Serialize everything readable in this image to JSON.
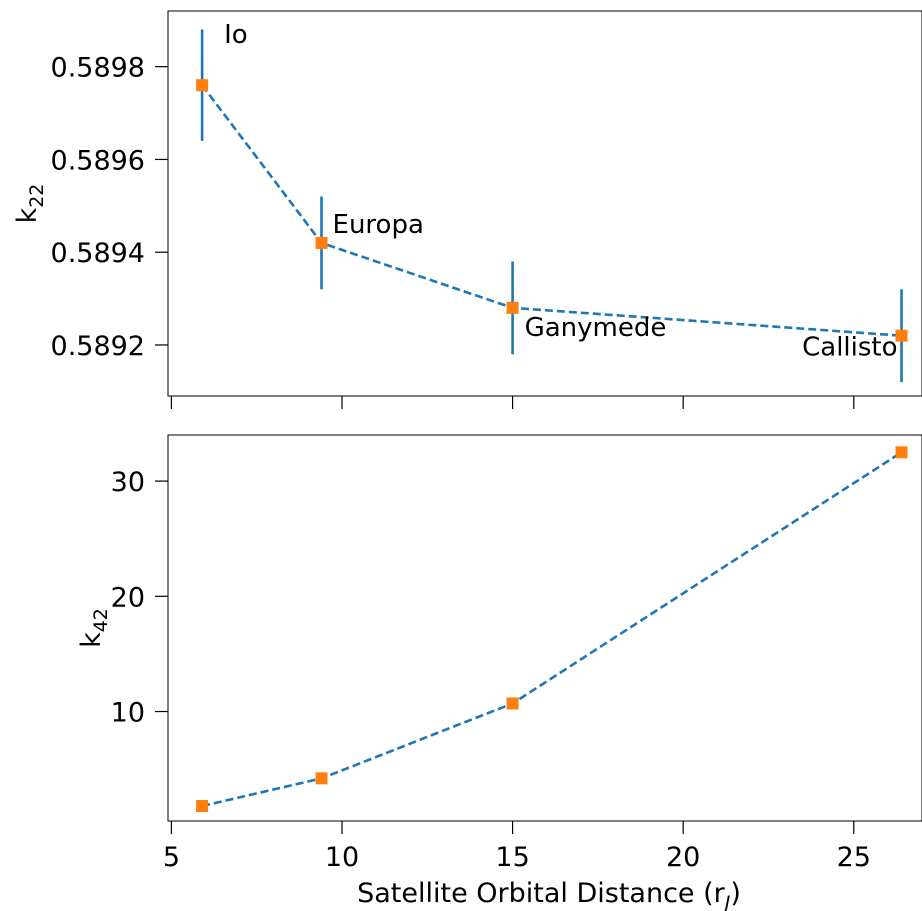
{
  "chart_data": [
    {
      "type": "line",
      "panel": "top",
      "ylabel": {
        "base": "k",
        "sub": "22"
      },
      "x": [
        5.9,
        9.4,
        15.0,
        26.4
      ],
      "series": [
        {
          "values": [
            0.58976,
            0.58942,
            0.58928,
            0.58922
          ],
          "errors": [
            0.00012,
            0.0001,
            0.0001,
            0.0001
          ],
          "line_color": "#1f77b4",
          "marker_color": "#ff7f0e"
        }
      ],
      "annotations": [
        "Io",
        "Europa",
        "Ganymede",
        "Callisto"
      ],
      "xlim": [
        4.9,
        27.0
      ],
      "ylim": [
        0.58909,
        0.58992
      ],
      "x_ticks": [
        5,
        10,
        15,
        20,
        25
      ],
      "y_ticks": [
        0.5892,
        0.5894,
        0.5896,
        0.5898
      ],
      "y_tick_labels": [
        "0.5892",
        "0.5894",
        "0.5896",
        "0.5898"
      ]
    },
    {
      "type": "line",
      "panel": "bottom",
      "ylabel": {
        "base": "k",
        "sub": "42"
      },
      "xlabel": {
        "base": "Satellite Orbital Distance (r",
        "sub": "J",
        "tail": ")"
      },
      "x": [
        5.9,
        9.4,
        15.0,
        26.4
      ],
      "series": [
        {
          "values": [
            1.8,
            4.2,
            10.7,
            32.5
          ],
          "line_color": "#1f77b4",
          "marker_color": "#ff7f0e"
        }
      ],
      "xlim": [
        4.9,
        27.0
      ],
      "ylim": [
        0.5,
        34.0
      ],
      "x_ticks": [
        5,
        10,
        15,
        20,
        25
      ],
      "x_tick_labels": [
        "5",
        "10",
        "15",
        "20",
        "25"
      ],
      "y_ticks": [
        10,
        20,
        30
      ],
      "y_tick_labels": [
        "10",
        "20",
        "30"
      ]
    }
  ]
}
